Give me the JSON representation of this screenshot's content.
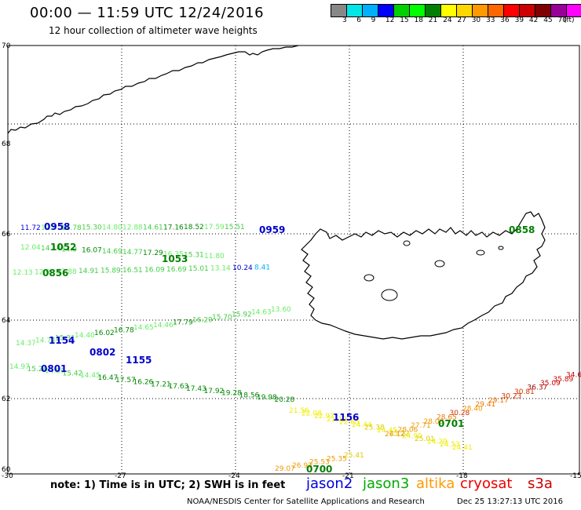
{
  "title": "00:00 — 11:59 UTC 12/24/2016",
  "subtitle": "12 hour collection of altimeter wave heights",
  "legend": {
    "colors": [
      "#888888",
      "#00e5e5",
      "#00b0ff",
      "#0000ff",
      "#00d000",
      "#00ff00",
      "#008000",
      "#ffff00",
      "#ffd700",
      "#ff9900",
      "#ff6600",
      "#ff0000",
      "#cc0000",
      "#800000",
      "#990099",
      "#ff00ff",
      "#000000"
    ],
    "labels": [
      "3",
      "6",
      "9",
      "12",
      "15",
      "18",
      "21",
      "24",
      "27",
      "30",
      "33",
      "36",
      "39",
      "42",
      "45",
      "70"
    ],
    "unit": "(ft)"
  },
  "axes": {
    "lat_ticks": [
      "70",
      "68",
      "66",
      "64",
      "62",
      "60"
    ],
    "lon_ticks": [
      "-30",
      "-27",
      "-24",
      "-21",
      "-18",
      "-15"
    ]
  },
  "note": "note: 1) Time is in UTC; 2) SWH is in feet",
  "satellites": [
    {
      "name": "jason2",
      "color": "#0000dd"
    },
    {
      "name": "jason3",
      "color": "#00aa00"
    },
    {
      "name": "altika",
      "color": "#ff9900"
    },
    {
      "name": "cryosat",
      "color": "#ee0000"
    },
    {
      "name": "s3a",
      "color": "#cc0000"
    }
  ],
  "footer_left": "NOAA/NESDIS Center for Satellite Applications and Research",
  "footer_right": "Dec 25 13:27:13 UTC 2016",
  "times": [
    {
      "text": "0958",
      "color": "#0000cc"
    },
    {
      "text": "0959",
      "color": "#0000cc"
    },
    {
      "text": "0858",
      "color": "#008000"
    },
    {
      "text": "1052",
      "color": "#008000"
    },
    {
      "text": "1053",
      "color": "#008000"
    },
    {
      "text": "0856",
      "color": "#008000"
    },
    {
      "text": "1154",
      "color": "#0000cc"
    },
    {
      "text": "0802",
      "color": "#0000cc"
    },
    {
      "text": "1155",
      "color": "#0000cc"
    },
    {
      "text": "0801",
      "color": "#0000cc"
    },
    {
      "text": "1156",
      "color": "#0000cc"
    },
    {
      "text": "0701",
      "color": "#008000"
    },
    {
      "text": "0700",
      "color": "#008000"
    }
  ],
  "tracks": [
    {
      "name": "track-0958-north",
      "points": [
        {
          "t": "11.72",
          "c": "#0000dd"
        },
        {
          "t": "12.8",
          "c": "#66ee66"
        },
        {
          "t": "16.78",
          "c": "#44cc44"
        },
        {
          "t": "15.30",
          "c": "#44cc44"
        },
        {
          "t": "14.80",
          "c": "#66ee66"
        },
        {
          "t": "12.88",
          "c": "#66ee66"
        },
        {
          "t": "14.61",
          "c": "#44cc44"
        },
        {
          "t": "17.16",
          "c": "#008800"
        },
        {
          "t": "18.52",
          "c": "#008800"
        },
        {
          "t": "17.59",
          "c": "#66ee66"
        },
        {
          "t": "15.51",
          "c": "#44cc44"
        }
      ]
    },
    {
      "name": "track-1052",
      "points": [
        {
          "t": "12.04",
          "c": "#66ee66"
        },
        {
          "t": "14.14",
          "c": "#44cc44"
        },
        {
          "t": "14.9",
          "c": "#44cc44"
        },
        {
          "t": "16.07",
          "c": "#008800"
        },
        {
          "t": "14.69",
          "c": "#44cc44"
        },
        {
          "t": "14.77",
          "c": "#44cc44"
        },
        {
          "t": "17.29",
          "c": "#008800"
        },
        {
          "t": "16.35",
          "c": "#66ee66"
        },
        {
          "t": "15.31",
          "c": "#44cc44"
        },
        {
          "t": "11.80",
          "c": "#66ee66"
        }
      ]
    },
    {
      "name": "track-0856",
      "points": [
        {
          "t": "12.13",
          "c": "#66ee66"
        },
        {
          "t": "12.9",
          "c": "#66ee66"
        },
        {
          "t": "13.88",
          "c": "#66ee66"
        },
        {
          "t": "14.91",
          "c": "#44cc44"
        },
        {
          "t": "15.89",
          "c": "#44cc44"
        },
        {
          "t": "16.51",
          "c": "#44cc44"
        },
        {
          "t": "16.09",
          "c": "#44cc44"
        },
        {
          "t": "16.69",
          "c": "#44cc44"
        },
        {
          "t": "15.01",
          "c": "#44cc44"
        },
        {
          "t": "13.14",
          "c": "#66ee66"
        },
        {
          "t": "10.24",
          "c": "#0000dd"
        },
        {
          "t": "8.41",
          "c": "#00b0ff"
        }
      ]
    },
    {
      "name": "track-1154",
      "points": [
        {
          "t": "14.37",
          "c": "#66ee66"
        },
        {
          "t": "14.74",
          "c": "#66ee66"
        },
        {
          "t": "15.31",
          "c": "#44cc44"
        },
        {
          "t": "14.40",
          "c": "#66ee66"
        },
        {
          "t": "16.02",
          "c": "#008800"
        },
        {
          "t": "16.78",
          "c": "#008800"
        },
        {
          "t": "14.65",
          "c": "#66ee66"
        },
        {
          "t": "14.46",
          "c": "#66ee66"
        },
        {
          "t": "17.79",
          "c": "#008800"
        },
        {
          "t": "16.29",
          "c": "#44cc44"
        },
        {
          "t": "15.70",
          "c": "#44cc44"
        },
        {
          "t": "15.92",
          "c": "#44cc44"
        },
        {
          "t": "14.63",
          "c": "#66ee66"
        },
        {
          "t": "13.60",
          "c": "#66ee66"
        }
      ]
    },
    {
      "name": "track-1155",
      "points": [
        {
          "t": "14.97",
          "c": "#66ee66"
        },
        {
          "t": "15.24",
          "c": "#44cc44"
        },
        {
          "t": "14.89",
          "c": "#66ee66"
        },
        {
          "t": "15.42",
          "c": "#44cc44"
        },
        {
          "t": "14.45",
          "c": "#66ee66"
        },
        {
          "t": "16.47",
          "c": "#008800"
        },
        {
          "t": "17.57",
          "c": "#008800"
        },
        {
          "t": "16.26",
          "c": "#008800"
        },
        {
          "t": "17.21",
          "c": "#008800"
        },
        {
          "t": "17.63",
          "c": "#008800"
        },
        {
          "t": "17.43",
          "c": "#008800"
        },
        {
          "t": "17.92",
          "c": "#008800"
        },
        {
          "t": "19.28",
          "c": "#008800"
        },
        {
          "t": "18.56",
          "c": "#008800"
        },
        {
          "t": "19.98",
          "c": "#008800"
        },
        {
          "t": "20.28",
          "c": "#008800"
        }
      ]
    },
    {
      "name": "track-1156",
      "points": [
        {
          "t": "21.56",
          "c": "#eeee00"
        },
        {
          "t": "22.08",
          "c": "#eeee00"
        },
        {
          "t": "22.97",
          "c": "#eeee00"
        },
        {
          "t": "21.12",
          "c": "#eeee00"
        },
        {
          "t": "22.63",
          "c": "#eeee00"
        },
        {
          "t": "24.44",
          "c": "#eeee00"
        },
        {
          "t": "25.38",
          "c": "#ddcc00"
        },
        {
          "t": "24.45",
          "c": "#eeee00"
        },
        {
          "t": "25.22",
          "c": "#ddcc00"
        },
        {
          "t": "24.90",
          "c": "#eeee00"
        },
        {
          "t": "25.01",
          "c": "#ddcc00"
        },
        {
          "t": "24.29",
          "c": "#eeee00"
        },
        {
          "t": "24.53",
          "c": "#eeee00"
        },
        {
          "t": "24.41",
          "c": "#eeee00"
        }
      ]
    },
    {
      "name": "track-0701",
      "points": [
        {
          "t": "26.12",
          "c": "#ee9900"
        },
        {
          "t": "28.06",
          "c": "#ee9900"
        },
        {
          "t": "27.71",
          "c": "#ee9900"
        },
        {
          "t": "28.03",
          "c": "#ee9900"
        },
        {
          "t": "28.65",
          "c": "#ee7700"
        },
        {
          "t": "30.28",
          "c": "#cc3300"
        },
        {
          "t": "28.40",
          "c": "#ee9900"
        },
        {
          "t": "29.41",
          "c": "#ee7700"
        },
        {
          "t": "29.17",
          "c": "#ee7700"
        },
        {
          "t": "30.23",
          "c": "#cc3300"
        },
        {
          "t": "30.81",
          "c": "#cc3300"
        },
        {
          "t": "36.37",
          "c": "#990000"
        },
        {
          "t": "35.09",
          "c": "#cc0000"
        },
        {
          "t": "35.89",
          "c": "#cc0000"
        },
        {
          "t": "34.6",
          "c": "#cc0000"
        }
      ]
    },
    {
      "name": "track-0700",
      "points": [
        {
          "t": "29.07",
          "c": "#ee9900"
        },
        {
          "t": "26.93",
          "c": "#ee9900"
        },
        {
          "t": "25.53",
          "c": "#ee9900"
        },
        {
          "t": "25.35",
          "c": "#ee9900"
        },
        {
          "t": "25.41",
          "c": "#ddcc00"
        }
      ]
    }
  ]
}
